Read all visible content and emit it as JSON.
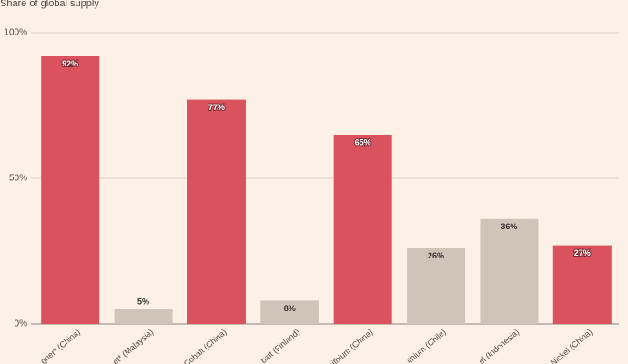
{
  "chart_data": {
    "type": "bar",
    "title": "Share of global supply",
    "categories": [
      "gner* (China)",
      "et* (Malaysia)",
      "Cobalt (China)",
      "balt (Finland)",
      "ithium (China)",
      "ithium (Chile)",
      "el (Indonesia)",
      "Nickel (China)"
    ],
    "values": [
      92,
      5,
      77,
      8,
      65,
      26,
      36,
      27
    ],
    "value_labels": [
      "92%",
      "5%",
      "77%",
      "8%",
      "65%",
      "26%",
      "36%",
      "27%"
    ],
    "colors": [
      "#d9525e",
      "#cfc4b8",
      "#d9525e",
      "#cfc4b8",
      "#d9525e",
      "#cfc4b8",
      "#cfc4b8",
      "#d9525e"
    ],
    "ylim": [
      0,
      100
    ],
    "yticks": [
      {
        "value": 0,
        "label": "0%"
      },
      {
        "value": 50,
        "label": "50%"
      },
      {
        "value": 100,
        "label": "100%"
      }
    ],
    "grid": true
  }
}
